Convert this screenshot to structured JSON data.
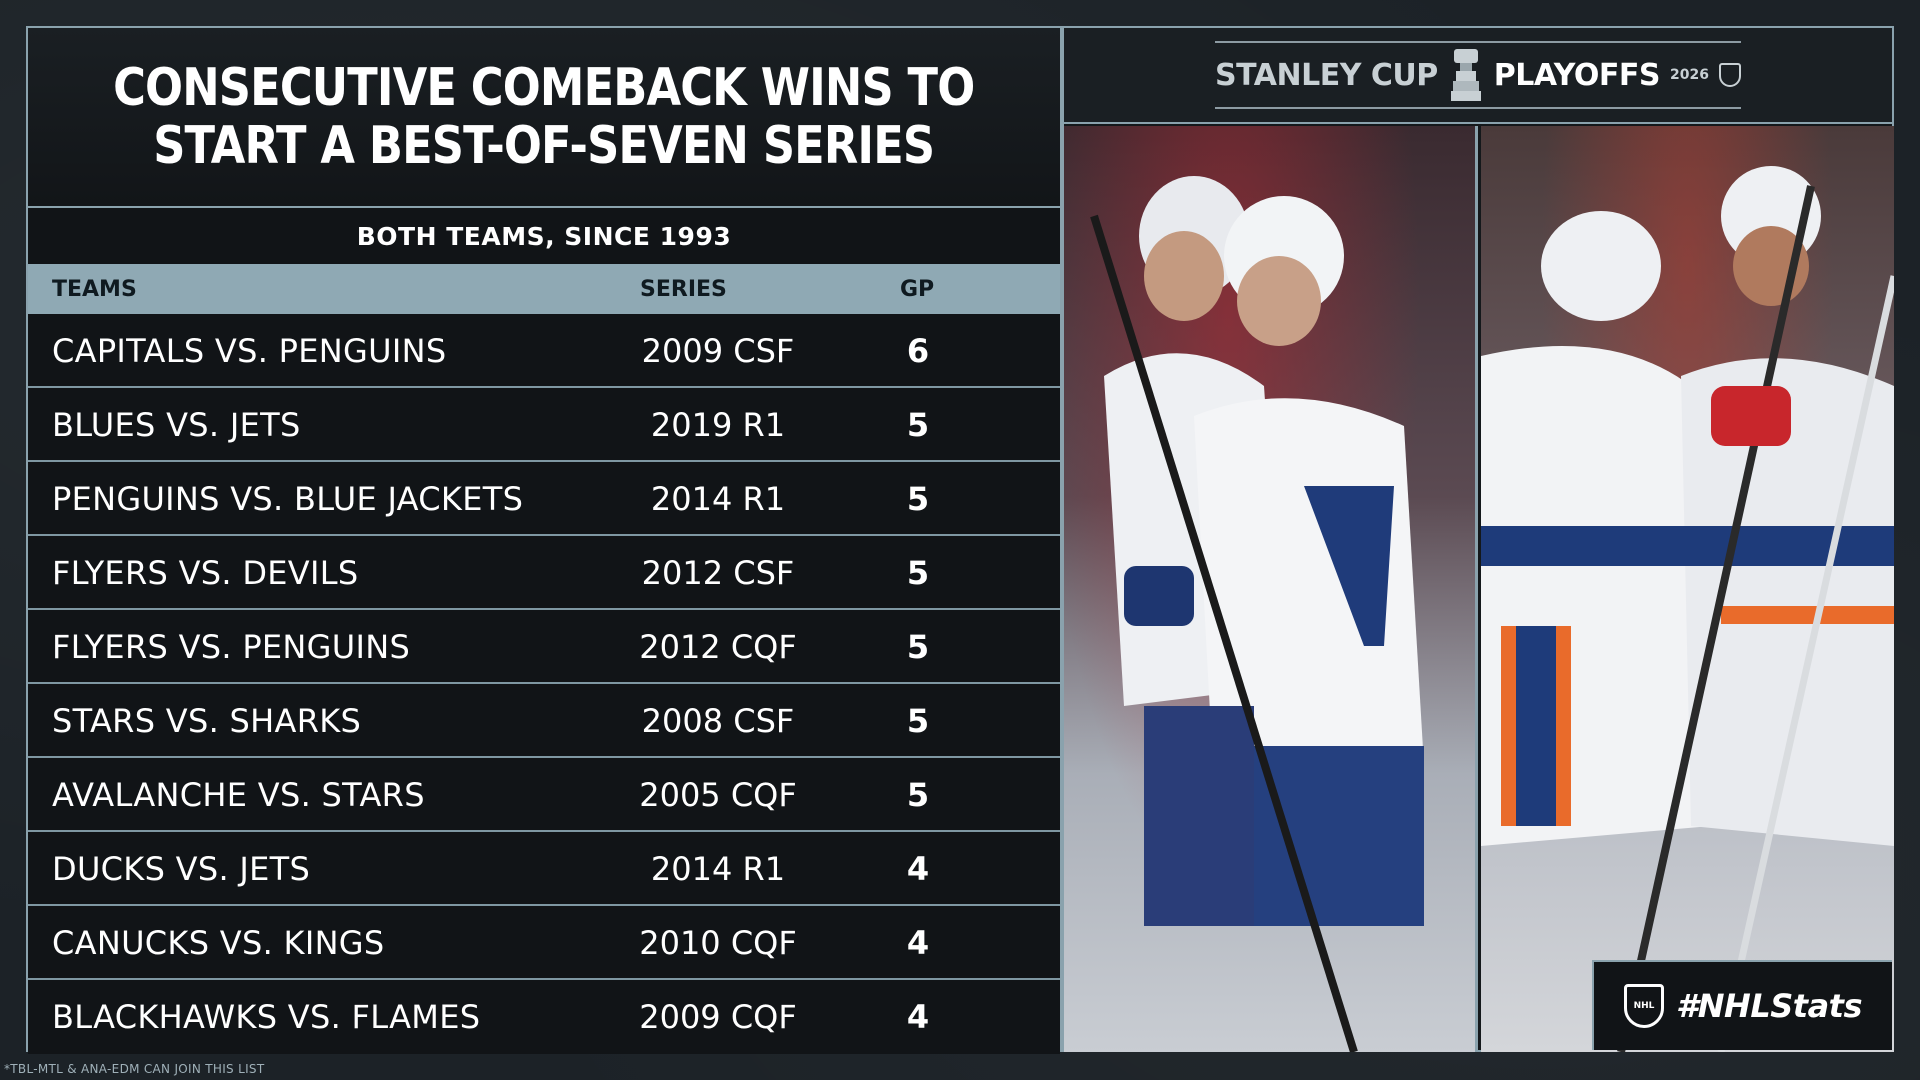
{
  "title": {
    "line1": "CONSECUTIVE COMEBACK WINS TO",
    "line2": "START A BEST-OF-SEVEN SERIES"
  },
  "subtitle": "BOTH TEAMS, SINCE 1993",
  "table": {
    "headers": {
      "teams": "TEAMS",
      "series": "SERIES",
      "gp": "GP"
    },
    "rows": [
      {
        "teams": "CAPITALS VS. PENGUINS",
        "series": "2009 CSF",
        "gp": "6"
      },
      {
        "teams": "BLUES VS. JETS",
        "series": "2019 R1",
        "gp": "5"
      },
      {
        "teams": "PENGUINS VS. BLUE JACKETS",
        "series": "2014 R1",
        "gp": "5"
      },
      {
        "teams": "FLYERS VS. DEVILS",
        "series": "2012 CSF",
        "gp": "5"
      },
      {
        "teams": "FLYERS VS. PENGUINS",
        "series": "2012 CQF",
        "gp": "5"
      },
      {
        "teams": "STARS VS. SHARKS",
        "series": "2008 CSF",
        "gp": "5"
      },
      {
        "teams": "AVALANCHE VS. STARS",
        "series": "2005 CQF",
        "gp": "5"
      },
      {
        "teams": "DUCKS VS. JETS",
        "series": "2014 R1",
        "gp": "4"
      },
      {
        "teams": "CANUCKS VS. KINGS",
        "series": "2010 CQF",
        "gp": "4"
      },
      {
        "teams": "BLACKHAWKS VS. FLAMES",
        "series": "2009 CQF",
        "gp": "4"
      }
    ]
  },
  "footnote": "*TBL-MTL & ANA-EDM CAN JOIN THIS LIST",
  "logo": {
    "stanley": "STANLEY CUP",
    "playoffs": "PLAYOFFS",
    "year": "2026",
    "cup_icon": "stanley-cup-icon",
    "shield_icon": "nhl-shield-icon"
  },
  "badge": {
    "hashtag": "#NHLStats",
    "shield_text": "NHL"
  },
  "colors": {
    "panel_border": "#8aa2ad",
    "header_bg": "#8fa9b4",
    "panel_bg": "#111417",
    "page_bg": "#1c2227"
  }
}
